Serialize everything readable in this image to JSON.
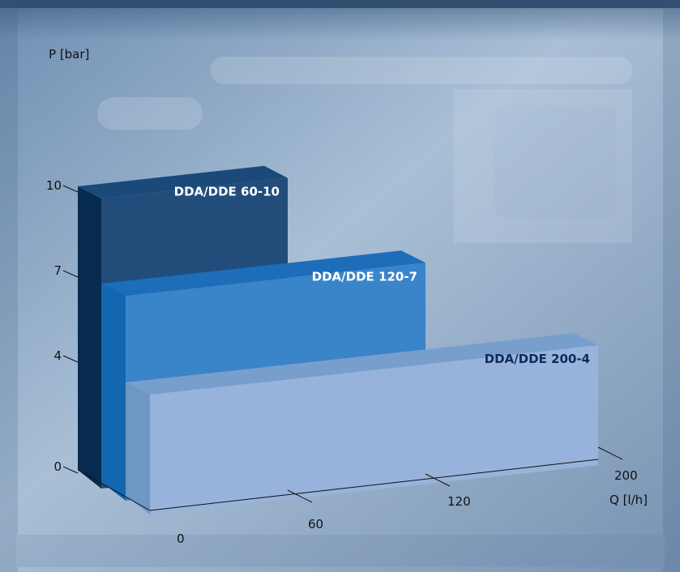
{
  "chart_data": {
    "type": "bar",
    "style": "3d-step-bars",
    "xlabel": "Q [l/h]",
    "ylabel": "P [bar]",
    "y_ticks": [
      "0",
      "4",
      "7",
      "10"
    ],
    "x_ticks": [
      "0",
      "60",
      "120",
      "200"
    ],
    "xlim": [
      0,
      200
    ],
    "ylim": [
      0,
      10
    ],
    "series": [
      {
        "label": "DDA/DDE 60-10",
        "max_flow": 60,
        "max_pressure": 10
      },
      {
        "label": "DDA/DDE 120-7",
        "max_flow": 120,
        "max_pressure": 7
      },
      {
        "label": "DDA/DDE 200-4",
        "max_flow": 200,
        "max_pressure": 4
      }
    ]
  },
  "colors": {
    "bar1_front": "#224d7b",
    "bar1_side": "#062b4f",
    "bar1_top": "#1a4a7a",
    "bar2_front": "#3a84c9",
    "bar2_side": "#1566b0",
    "bar2_top": "#1d6db9",
    "bar3_front": "#98b3db",
    "bar3_side": "#6f97c4",
    "bar3_top": "#789fcc",
    "label_light": "#ffffff",
    "label_dark": "#102a5a",
    "axis": "#111111"
  }
}
